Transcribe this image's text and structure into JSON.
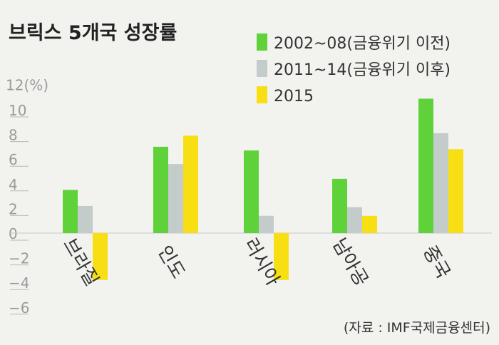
{
  "chart_data": {
    "type": "bar",
    "title": "브릭스 5개국 성장률",
    "ylabel": "12(%)",
    "ylim": [
      -6,
      12
    ],
    "yticks": [
      10,
      8,
      6,
      4,
      2,
      0,
      -2,
      -4,
      -6
    ],
    "categories": [
      "브라질",
      "인도",
      "러시아",
      "남아공",
      "중국"
    ],
    "series": [
      {
        "name": "2002~08(금융위기 이전)",
        "color": "#5fd23a",
        "values": [
          3.5,
          7.0,
          6.7,
          4.4,
          10.9
        ]
      },
      {
        "name": "2011~14(금융위기 이후)",
        "color": "#c3cbcb",
        "values": [
          2.2,
          5.6,
          1.4,
          2.1,
          8.1
        ]
      },
      {
        "name": "2015",
        "color": "#f7df14",
        "values": [
          -3.8,
          7.9,
          -3.8,
          1.4,
          6.8
        ]
      }
    ],
    "legend_position": "top-right",
    "source": "(자료 : IMF국제금융센터)"
  }
}
